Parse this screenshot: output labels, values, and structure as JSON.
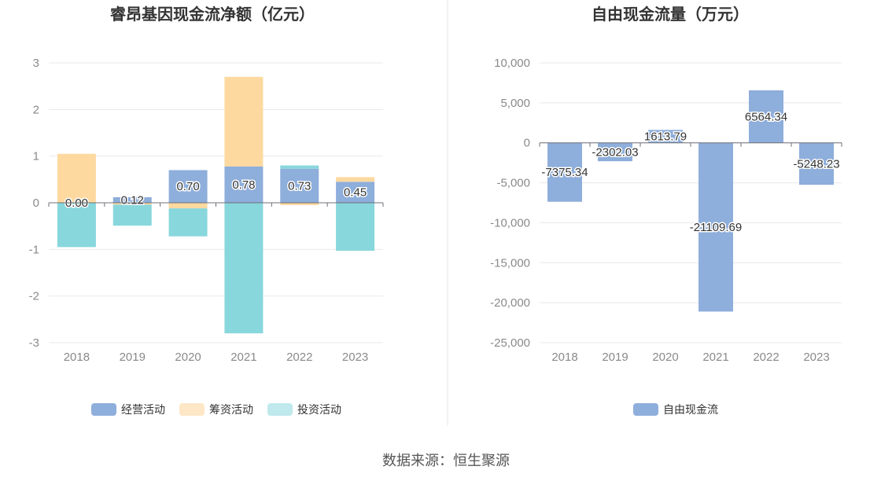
{
  "source_text": "数据来源：恒生聚源",
  "chart_data": [
    {
      "type": "bar",
      "stacked": true,
      "title": "睿昂基因现金流净额（亿元）",
      "categories": [
        "2018",
        "2019",
        "2020",
        "2021",
        "2022",
        "2023"
      ],
      "ylim": [
        -3,
        3
      ],
      "yticks": [
        3,
        2,
        1,
        0,
        -1,
        -2,
        -3
      ],
      "grid": true,
      "legend_position": "bottom",
      "series": [
        {
          "name": "经营活动",
          "color": "#8eaedb",
          "values": [
            0.0,
            0.12,
            0.7,
            0.78,
            0.73,
            0.45
          ],
          "labels": [
            "0.00",
            "0.12",
            "0.70",
            "0.78",
            "0.73",
            "0.45"
          ]
        },
        {
          "name": "筹资活动",
          "color": "#fdd9a0",
          "values": [
            1.05,
            -0.04,
            -0.12,
            1.92,
            -0.05,
            0.1
          ]
        },
        {
          "name": "投资活动",
          "color": "#88d7dc",
          "values": [
            -0.95,
            -0.45,
            -0.6,
            -2.8,
            0.07,
            -1.03
          ]
        }
      ],
      "legend": [
        {
          "label": "经营活动",
          "color": "#8eaedb"
        },
        {
          "label": "筹资活动",
          "color": "#fde7c6"
        },
        {
          "label": "投资活动",
          "color": "#bfe9ec"
        }
      ]
    },
    {
      "type": "bar",
      "title": "自由现金流量（万元）",
      "categories": [
        "2018",
        "2019",
        "2020",
        "2021",
        "2022",
        "2023"
      ],
      "ylim": [
        -25000,
        10000
      ],
      "yticks": [
        10000,
        5000,
        0,
        -5000,
        -10000,
        -15000,
        -20000,
        -25000
      ],
      "ytick_labels": [
        "10,000",
        "5,000",
        "0",
        "-5,000",
        "-10,000",
        "-15,000",
        "-20,000",
        "-25,000"
      ],
      "grid": true,
      "legend_position": "bottom",
      "series": [
        {
          "name": "自由现金流",
          "color": "#8eaedb",
          "values": [
            -7375.34,
            -2302.03,
            1613.79,
            -21109.69,
            6564.34,
            -5248.23
          ],
          "labels": [
            "-7375.34",
            "-2302.03",
            "1613.79",
            "-21109.69",
            "6564.34",
            "-5248.23"
          ]
        }
      ],
      "legend": [
        {
          "label": "自由现金流",
          "color": "#8eaedb"
        }
      ]
    }
  ]
}
